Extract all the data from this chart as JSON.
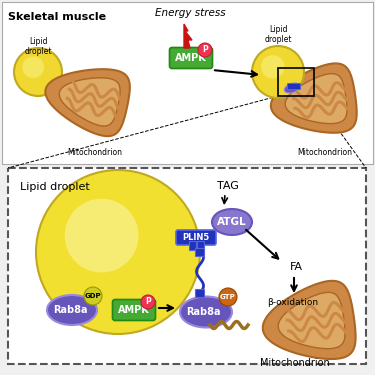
{
  "title": "Skeletal muscle",
  "energy_stress_label": "Energy stress",
  "ampk_label": "AMPK",
  "p_label": "P",
  "mitochondrion_label": "Mitochondrion",
  "lipid_droplet_label": "Lipid\ndroplet",
  "lipid_droplet_label2": "Lipid\ndroplet",
  "lipid_droplet_label3": "Lipid droplet",
  "tag_label": "TAG",
  "atgl_label": "ATGL",
  "plin5_label": "PLIN5",
  "rab8a_gdp_label": "Rab8a",
  "gdp_label": "GDP",
  "ampk2_label": "AMPK",
  "p2_label": "P",
  "rab8a_gtp_label": "Rab8a",
  "gtp_label": "GTP",
  "fa_label": "FA",
  "beta_ox_label": "β-oxidation",
  "mitochondrion2_label": "Mitochondrion",
  "bg_color": "#f0f0f0",
  "mito_fill": "#cc8844",
  "mito_inner_fill": "#ddaa66",
  "mito_stroke": "#aa6622",
  "ld_yellow": "#f0d830",
  "ld_inner_yellow": "#f8f080",
  "purple_dark": "#6655bb",
  "purple_light": "#9988dd",
  "blue_dark": "#2233bb",
  "blue_mid": "#5566dd",
  "green_ampk": "#44aa33",
  "red_arrow": "#cc1111",
  "pink_p": "#ee3355",
  "orange_gtp": "#cc6611",
  "dashed_box_color": "#555555",
  "white": "#ffffff",
  "black": "#000000",
  "light_gray": "#e8e8e8"
}
